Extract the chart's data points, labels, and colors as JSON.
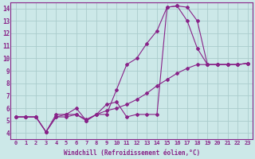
{
  "xlabel": "Windchill (Refroidissement éolien,°C)",
  "bg_color": "#cce8e8",
  "grid_color": "#aacccc",
  "line_color": "#882288",
  "xlim": [
    -0.5,
    23.5
  ],
  "ylim": [
    3.5,
    14.5
  ],
  "xticks": [
    0,
    1,
    2,
    3,
    4,
    5,
    6,
    7,
    8,
    9,
    10,
    11,
    12,
    13,
    14,
    15,
    16,
    17,
    18,
    19,
    20,
    21,
    22,
    23
  ],
  "yticks": [
    4,
    5,
    6,
    7,
    8,
    9,
    10,
    11,
    12,
    13,
    14
  ],
  "line1_x": [
    0,
    1,
    2,
    3,
    4,
    5,
    6,
    7,
    8,
    9,
    10,
    11,
    12,
    13,
    14,
    15,
    16,
    17,
    18,
    19,
    20,
    21,
    22,
    23
  ],
  "line1_y": [
    5.3,
    5.3,
    5.3,
    4.1,
    5.3,
    5.3,
    5.5,
    5.0,
    5.5,
    6.3,
    6.5,
    5.3,
    5.5,
    5.5,
    5.5,
    14.1,
    14.2,
    13.0,
    10.8,
    9.5,
    9.5,
    9.5,
    9.5,
    9.6
  ],
  "line2_x": [
    0,
    1,
    2,
    3,
    4,
    5,
    6,
    7,
    8,
    9,
    10,
    11,
    12,
    13,
    14,
    15,
    16,
    17,
    18,
    19,
    20,
    21,
    22,
    23
  ],
  "line2_y": [
    5.3,
    5.3,
    5.3,
    4.1,
    5.5,
    5.5,
    6.0,
    5.0,
    5.5,
    5.5,
    7.5,
    9.5,
    10.0,
    11.2,
    12.2,
    14.1,
    14.2,
    14.1,
    13.0,
    9.5,
    9.5,
    9.5,
    9.5,
    9.6
  ],
  "line3_x": [
    0,
    1,
    2,
    3,
    4,
    5,
    6,
    7,
    8,
    9,
    10,
    11,
    12,
    13,
    14,
    15,
    16,
    17,
    18,
    19,
    20,
    21,
    22,
    23
  ],
  "line3_y": [
    5.3,
    5.3,
    5.3,
    4.1,
    5.3,
    5.5,
    5.5,
    5.1,
    5.5,
    5.8,
    6.0,
    6.3,
    6.7,
    7.2,
    7.8,
    8.3,
    8.8,
    9.2,
    9.5,
    9.5,
    9.5,
    9.5,
    9.5,
    9.6
  ]
}
